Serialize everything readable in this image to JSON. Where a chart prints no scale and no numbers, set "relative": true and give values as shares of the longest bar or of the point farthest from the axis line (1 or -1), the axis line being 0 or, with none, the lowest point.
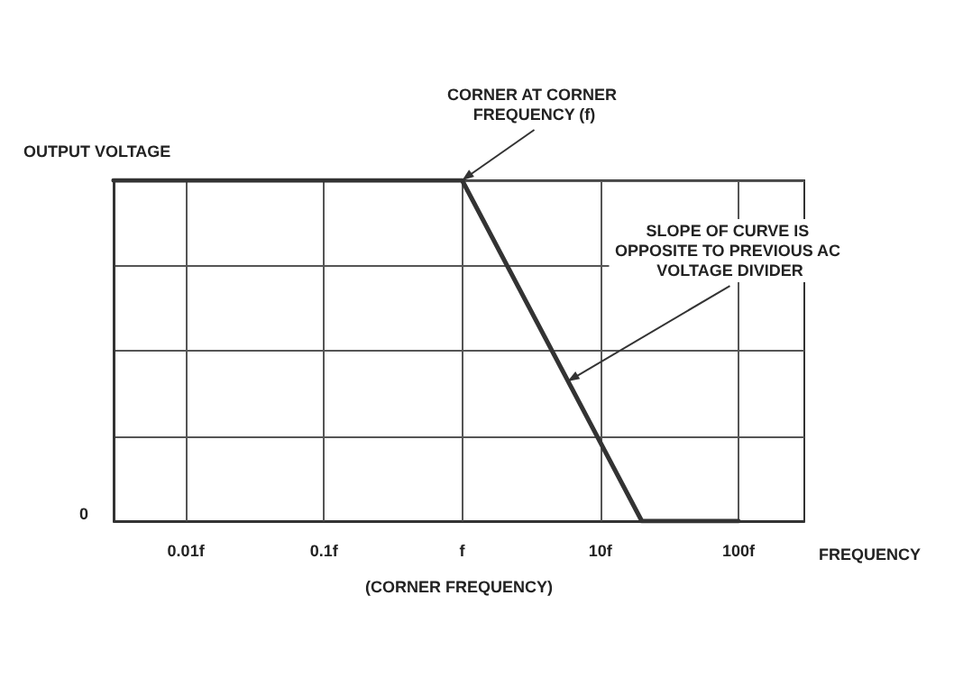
{
  "chart_data": {
    "type": "line",
    "relative": true,
    "xlabel": "FREQUENCY",
    "ylabel": "OUTPUT VOLTAGE",
    "log": "x",
    "grid": true,
    "marker": "none",
    "line_style": "solid",
    "x": [
      0.003,
      1,
      20,
      100
    ],
    "series": [
      {
        "color": "#333333",
        "values": [
          1,
          1,
          0,
          0
        ]
      }
    ],
    "xlim": [
      0.003,
      300
    ],
    "xticks": [
      {
        "value": 0.01,
        "label": "0.01f"
      },
      {
        "value": 0.1,
        "label": "0.1f"
      },
      {
        "value": 1,
        "label": "f"
      },
      {
        "value": 10,
        "label": "10f"
      },
      {
        "value": 100,
        "label": "100f"
      }
    ],
    "annotations": [
      {
        "text": "CORNER AT CORNER FREQUENCY (f)",
        "x": 1,
        "y": 1
      },
      {
        "text": "SLOPE OF CURVE IS OPPOSITE TO PREVIOUS AC VOLTAGE DIVIDER",
        "x": 5.8,
        "y": 0.41
      },
      "(CORNER FREQUENCY)",
      "0"
    ]
  }
}
